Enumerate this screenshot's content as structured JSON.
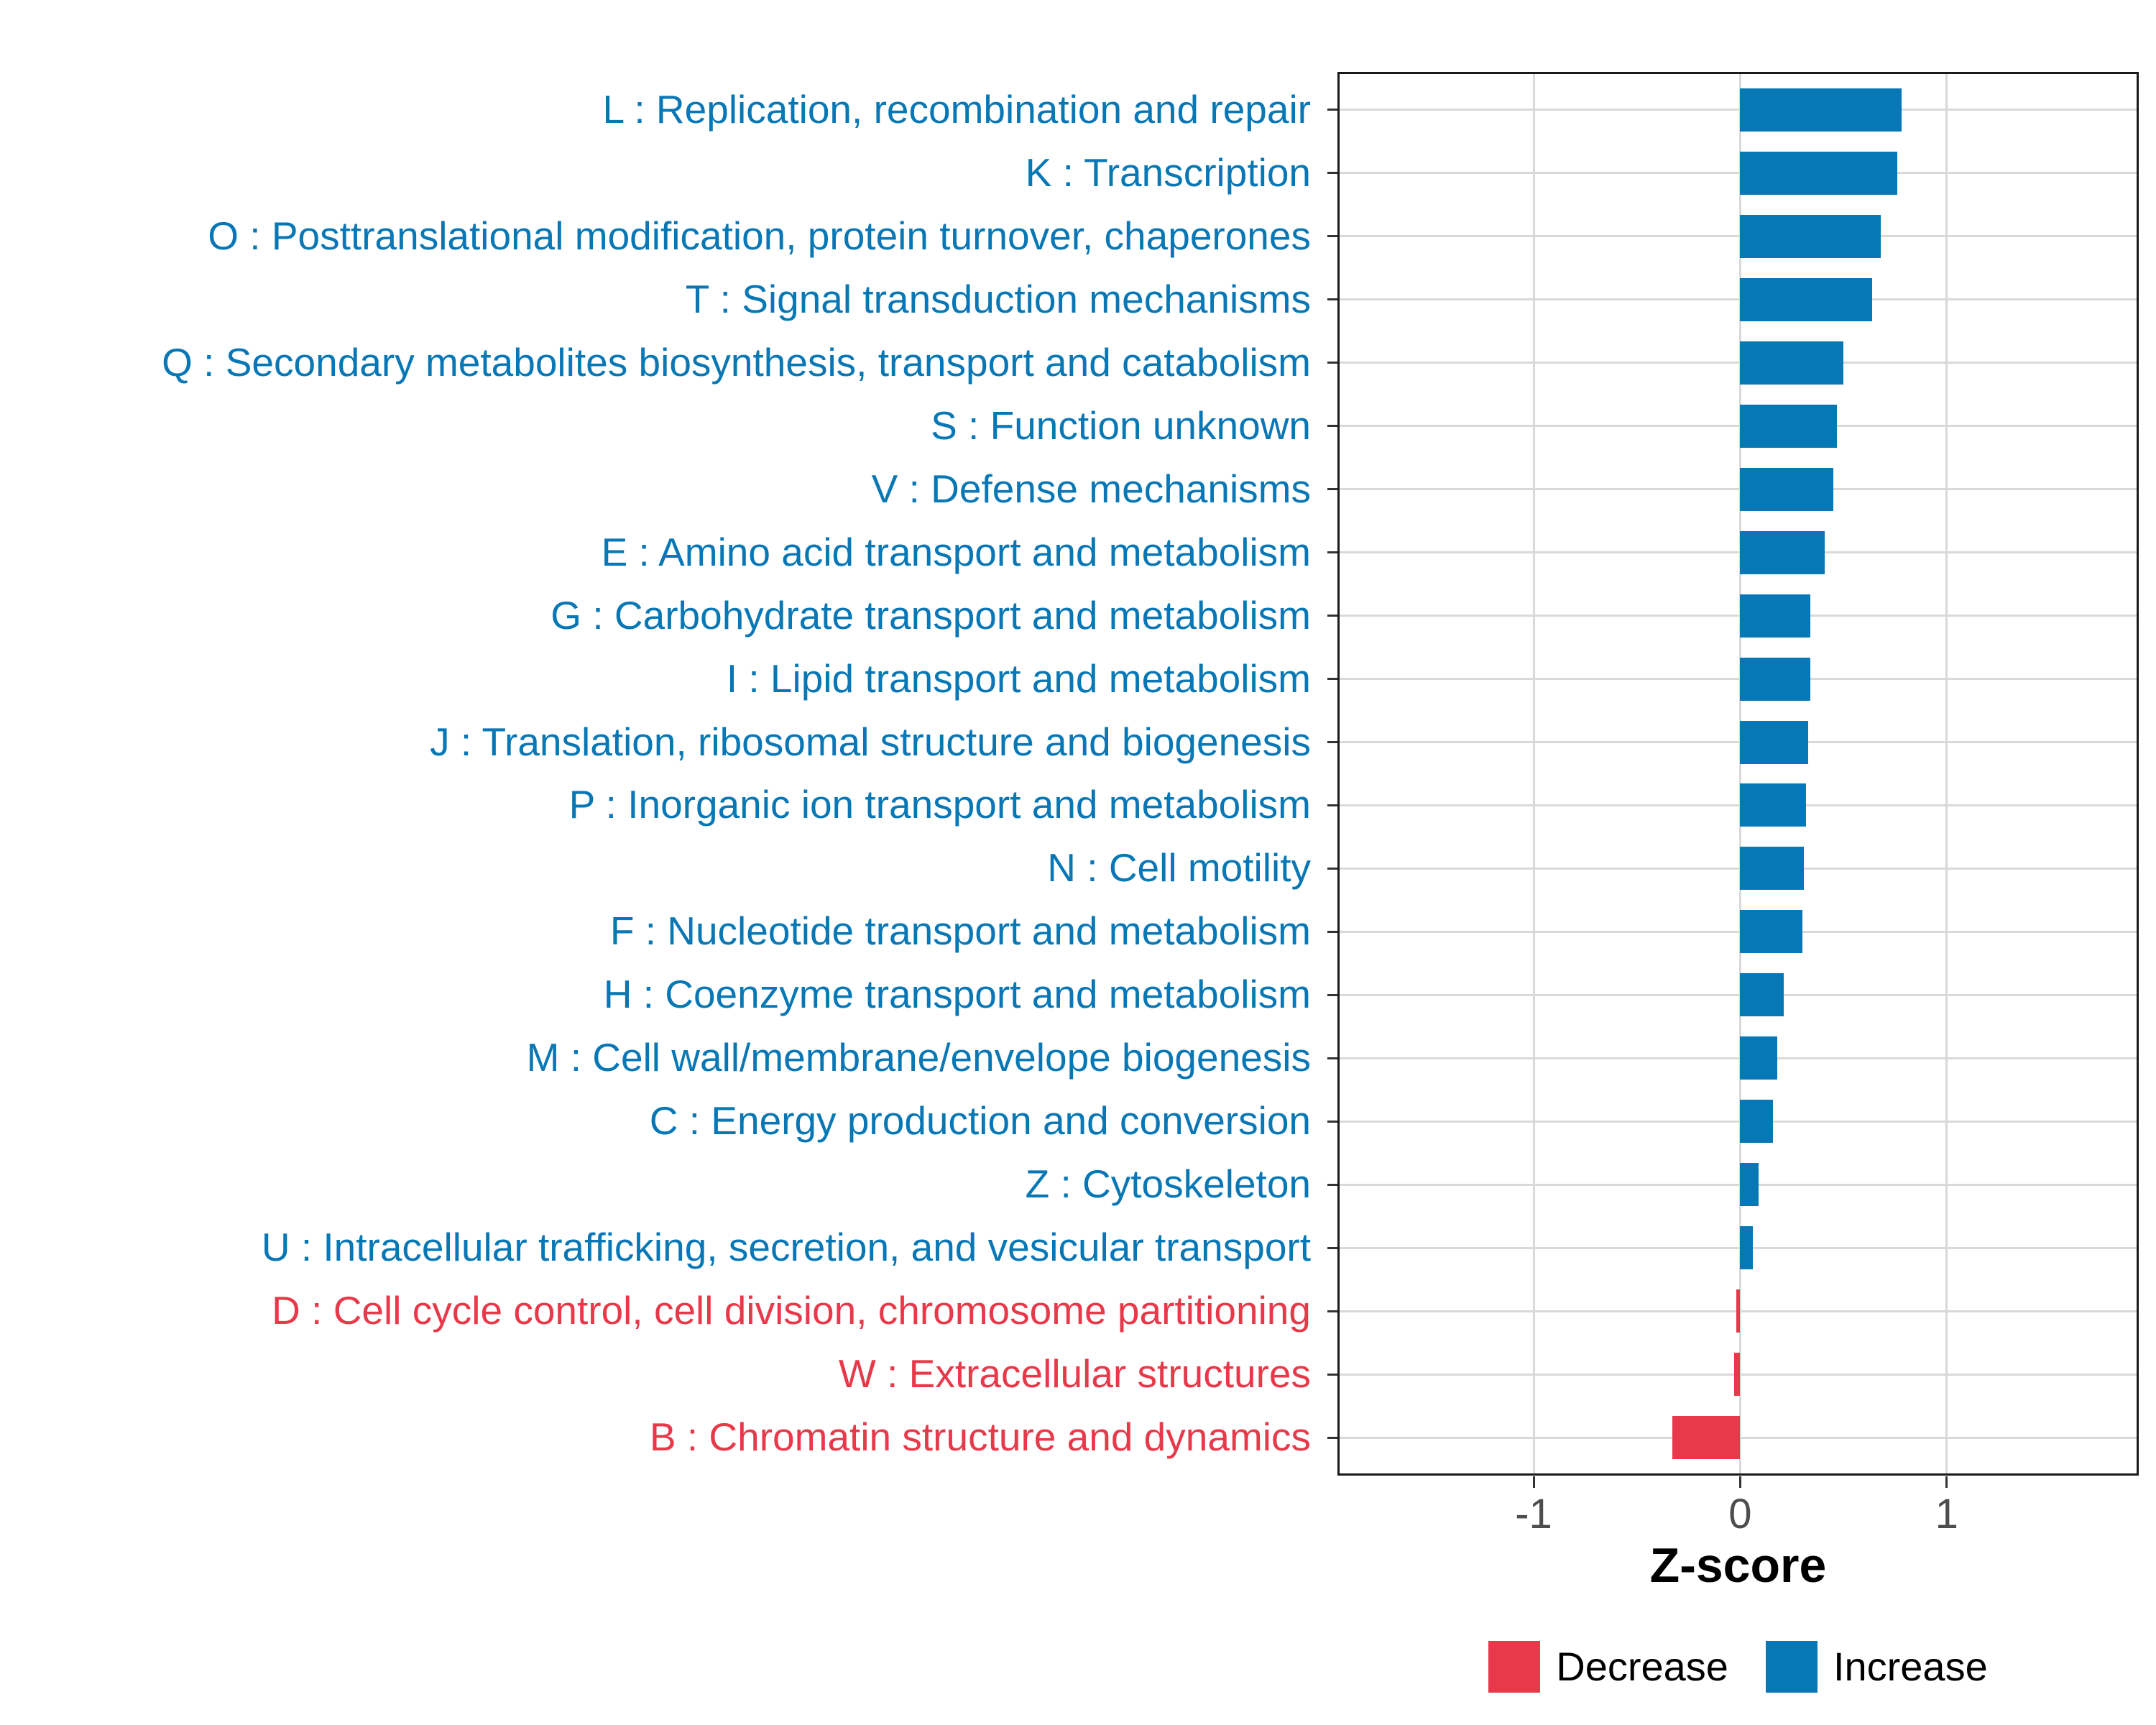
{
  "chart_data": {
    "type": "bar",
    "orientation": "horizontal",
    "title": "",
    "xlabel": "Z-score",
    "ylabel": "",
    "grid": true,
    "axis": {
      "min": -1.95,
      "max": 1.93,
      "tick_values": [
        -1,
        0,
        1
      ],
      "tick_labels": [
        "-1",
        "0",
        "1"
      ]
    },
    "legend_position": "bottom-center",
    "legend": [
      {
        "label": "Decrease",
        "color": "#E8394A"
      },
      {
        "label": "Increase",
        "color": "#0877B5"
      }
    ],
    "bars": [
      {
        "code": "L",
        "label": "L : Replication, recombination and repair",
        "value": 0.78,
        "group": "Increase"
      },
      {
        "code": "K",
        "label": "K : Transcription",
        "value": 0.76,
        "group": "Increase"
      },
      {
        "code": "O",
        "label": "O : Posttranslational modification, protein turnover, chaperones",
        "value": 0.68,
        "group": "Increase"
      },
      {
        "code": "T",
        "label": "T : Signal transduction mechanisms",
        "value": 0.64,
        "group": "Increase"
      },
      {
        "code": "Q",
        "label": "Q : Secondary metabolites biosynthesis, transport and catabolism",
        "value": 0.5,
        "group": "Increase"
      },
      {
        "code": "S",
        "label": "S : Function unknown",
        "value": 0.47,
        "group": "Increase"
      },
      {
        "code": "V",
        "label": "V : Defense mechanisms",
        "value": 0.45,
        "group": "Increase"
      },
      {
        "code": "E",
        "label": "E : Amino acid transport and metabolism",
        "value": 0.41,
        "group": "Increase"
      },
      {
        "code": "G",
        "label": "G : Carbohydrate transport and metabolism",
        "value": 0.34,
        "group": "Increase"
      },
      {
        "code": "I",
        "label": "I : Lipid transport and metabolism",
        "value": 0.34,
        "group": "Increase"
      },
      {
        "code": "J",
        "label": "J : Translation, ribosomal structure and biogenesis",
        "value": 0.33,
        "group": "Increase"
      },
      {
        "code": "P",
        "label": "P : Inorganic ion transport and metabolism",
        "value": 0.32,
        "group": "Increase"
      },
      {
        "code": "N",
        "label": "N : Cell motility",
        "value": 0.31,
        "group": "Increase"
      },
      {
        "code": "F",
        "label": "F : Nucleotide transport and metabolism",
        "value": 0.3,
        "group": "Increase"
      },
      {
        "code": "H",
        "label": "H : Coenzyme transport and metabolism",
        "value": 0.21,
        "group": "Increase"
      },
      {
        "code": "M",
        "label": "M : Cell wall/membrane/envelope biogenesis",
        "value": 0.18,
        "group": "Increase"
      },
      {
        "code": "C",
        "label": "C : Energy production and conversion",
        "value": 0.16,
        "group": "Increase"
      },
      {
        "code": "Z",
        "label": "Z : Cytoskeleton",
        "value": 0.09,
        "group": "Increase"
      },
      {
        "code": "U",
        "label": "U : Intracellular trafficking, secretion, and vesicular transport",
        "value": 0.06,
        "group": "Increase"
      },
      {
        "code": "D",
        "label": "D : Cell cycle control, cell division, chromosome partitioning",
        "value": -0.02,
        "group": "Decrease"
      },
      {
        "code": "W",
        "label": "W : Extracellular structures",
        "value": -0.03,
        "group": "Decrease"
      },
      {
        "code": "B",
        "label": "B : Chromatin structure and dynamics",
        "value": -0.33,
        "group": "Decrease"
      }
    ]
  },
  "colors": {
    "increase": "#0877B5",
    "decrease": "#E8394A",
    "gridline": "#D9D9D9",
    "panel_border": "#1A1A1A",
    "tick": "#333333",
    "tick_text": "#4D4D4D",
    "axis_title_text": "#000000"
  }
}
